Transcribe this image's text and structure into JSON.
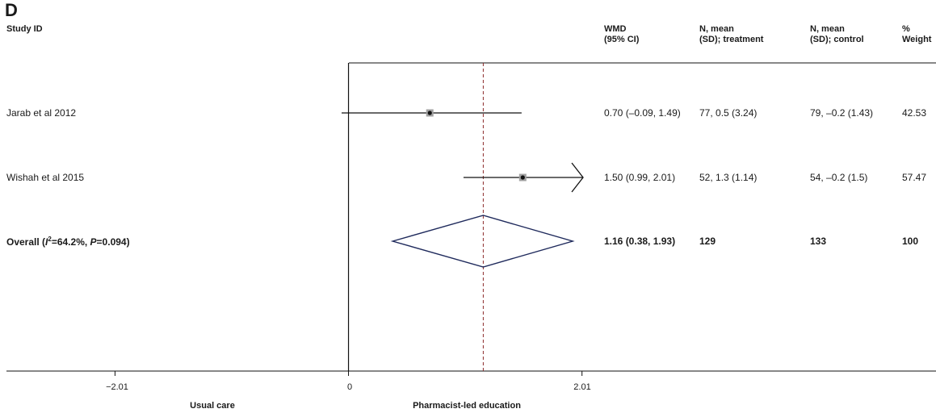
{
  "panel_label": "D",
  "headers": {
    "study": "Study ID",
    "wmd_1": "WMD",
    "wmd_2": "(95% CI)",
    "treat_1": "N, mean",
    "treat_2": "(SD); treatment",
    "ctrl_1": "N, mean",
    "ctrl_2": "(SD); control",
    "weight_1": "%",
    "weight_2": "Weight"
  },
  "rows": [
    {
      "study": "Jarab et al 2012",
      "wmd": "0.70 (–0.09, 1.49)",
      "treatment": "77, 0.5 (3.24)",
      "control": "79, –0.2 (1.43)",
      "weight": "42.53"
    },
    {
      "study": "Wishah et al 2015",
      "wmd": "1.50 (0.99, 2.01)",
      "treatment": "52, 1.3 (1.14)",
      "control": "54, –0.2 (1.5)",
      "weight": "57.47"
    }
  ],
  "overall": {
    "prefix": "Overall (",
    "i_sym": "I",
    "i_sup": "2",
    "i_val": "=64.2%, ",
    "p_sym": "P",
    "p_val": "=0.094)",
    "wmd": "1.16 (0.38, 1.93)",
    "treatment": "129",
    "control": "133",
    "weight": "100"
  },
  "axis": {
    "ticks": [
      "−2.01",
      "0",
      "2.01"
    ],
    "left_label": "Usual care",
    "right_label": "Pharmacist-led education"
  },
  "chart_data": {
    "type": "forest",
    "xlim": [
      -3.0,
      4.96
    ],
    "ticks": [
      -2.01,
      0,
      2.01
    ],
    "null_line": 0,
    "pooled_line": 1.16,
    "studies": [
      {
        "name": "Jarab et al 2012",
        "estimate": 0.7,
        "lower": -0.09,
        "upper": 1.49,
        "weight": 42.53
      },
      {
        "name": "Wishah et al 2015",
        "estimate": 1.5,
        "lower": 0.99,
        "upper": 2.01,
        "weight": 57.47
      }
    ],
    "overall": {
      "estimate": 1.16,
      "lower": 0.38,
      "upper": 1.93
    },
    "colors": {
      "line": "#111111",
      "diamond": "#1f2a5c",
      "pooled": "#8b2a2a",
      "box": "#a0a0a0"
    }
  }
}
